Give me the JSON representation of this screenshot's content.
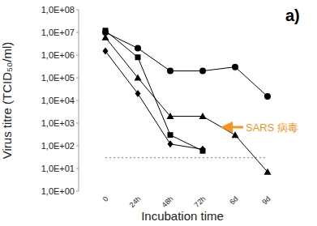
{
  "chart_data": {
    "type": "line",
    "x_label": "Incubation time",
    "y_label": "Virus titre (TCID₅₀/ml)",
    "log": "y",
    "grid": false,
    "categories": [
      "0",
      "24h",
      "48h",
      "72h",
      "6d",
      "9d"
    ],
    "ylim": [
      1,
      100000000
    ],
    "yticks": [
      {
        "value": 1,
        "label": "1,0E+00"
      },
      {
        "value": 10,
        "label": "1,0E+01"
      },
      {
        "value": 100,
        "label": "1,0E+02"
      },
      {
        "value": 1000,
        "label": "1,0E+03"
      },
      {
        "value": 10000,
        "label": "1,0E+04"
      },
      {
        "value": 100000,
        "label": "1,0E+05"
      },
      {
        "value": 1000000,
        "label": "1,0E+06"
      },
      {
        "value": 10000000,
        "label": "1,0E+07"
      },
      {
        "value": 100000000,
        "label": "1,0E+08"
      }
    ],
    "series": [
      {
        "color": "#999999",
        "marker": "none",
        "line_style": "dotted",
        "values": [
          30,
          30,
          30,
          30,
          30,
          30
        ]
      },
      {
        "color": "#000000",
        "marker": "circle",
        "line_style": "solid",
        "values": [
          10000000,
          2000000,
          200000,
          200000,
          300000,
          15000
        ]
      },
      {
        "color": "#000000",
        "marker": "square",
        "line_style": "solid",
        "values": [
          12000000,
          800000,
          300,
          60,
          null,
          null
        ]
      },
      {
        "color": "#000000",
        "marker": "triangle",
        "line_style": "solid",
        "values": [
          6000000,
          100000,
          2000,
          2000,
          300,
          7
        ]
      },
      {
        "color": "#000000",
        "marker": "diamond",
        "line_style": "solid",
        "values": [
          1500000,
          20000,
          120,
          70,
          null,
          null
        ]
      }
    ],
    "annotations": [
      {
        "text": "a)",
        "color": "#000000"
      },
      {
        "text": "SARS 病毒",
        "color": "#f7941d"
      }
    ]
  }
}
